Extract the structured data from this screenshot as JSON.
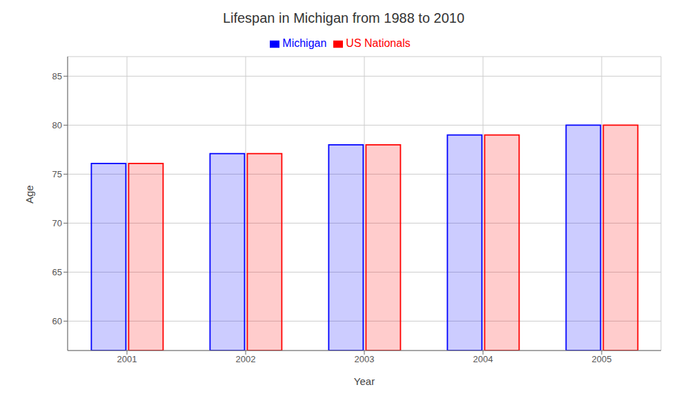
{
  "chart_data": {
    "type": "bar",
    "title": "Lifespan in Michigan from 1988 to 2010",
    "x_label": "Year",
    "y_label": "Age",
    "categories": [
      "2001",
      "2002",
      "2003",
      "2004",
      "2005"
    ],
    "series": [
      {
        "name": "Michigan",
        "color": "#0000ff",
        "values": [
          76.1,
          77.1,
          78.0,
          79.0,
          80.0
        ]
      },
      {
        "name": "US Nationals",
        "color": "#ff0000",
        "values": [
          76.1,
          77.1,
          78.0,
          79.0,
          80.0
        ]
      }
    ],
    "ylim": [
      57,
      87
    ],
    "yticks": [
      60,
      65,
      70,
      75,
      80,
      85
    ],
    "grid": true,
    "legend": "top"
  }
}
